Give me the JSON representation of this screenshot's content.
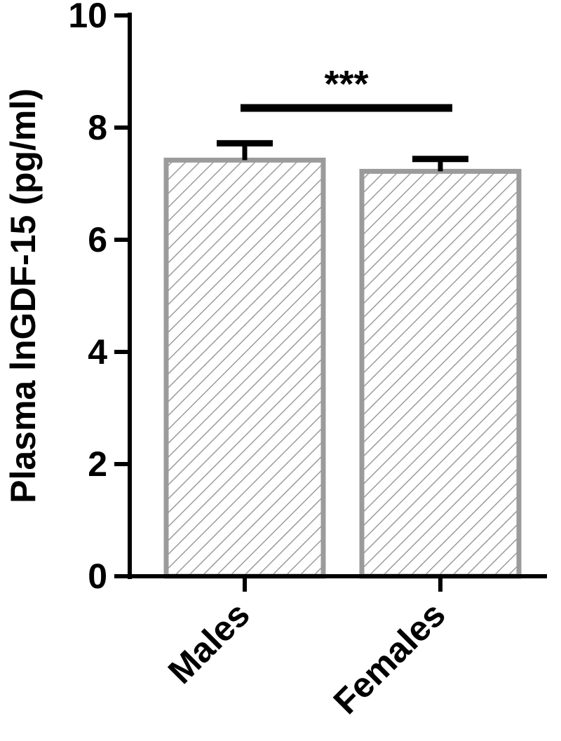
{
  "chart_data": {
    "type": "bar",
    "title": "",
    "xlabel": "",
    "ylabel": "Plasma lnGDF-15 (pg/ml)",
    "ylim": [
      0,
      10
    ],
    "yticks": [
      0,
      2,
      4,
      6,
      8,
      10
    ],
    "grid": false,
    "legend": "none",
    "categories": [
      "Males",
      "Females"
    ],
    "series": [
      {
        "values": [
          7.42,
          7.22
        ],
        "error_upper": [
          0.3,
          0.22
        ]
      }
    ],
    "annotations": [
      {
        "text": "***",
        "between": [
          "Males",
          "Females"
        ],
        "y": 8.35
      }
    ],
    "colors": {
      "bar_outline": "#9b9b9b",
      "bar_hatch": "#9b9b9b",
      "bar_fill": "#ffffff",
      "axis": "#000000",
      "error_bar": "#000000"
    }
  }
}
